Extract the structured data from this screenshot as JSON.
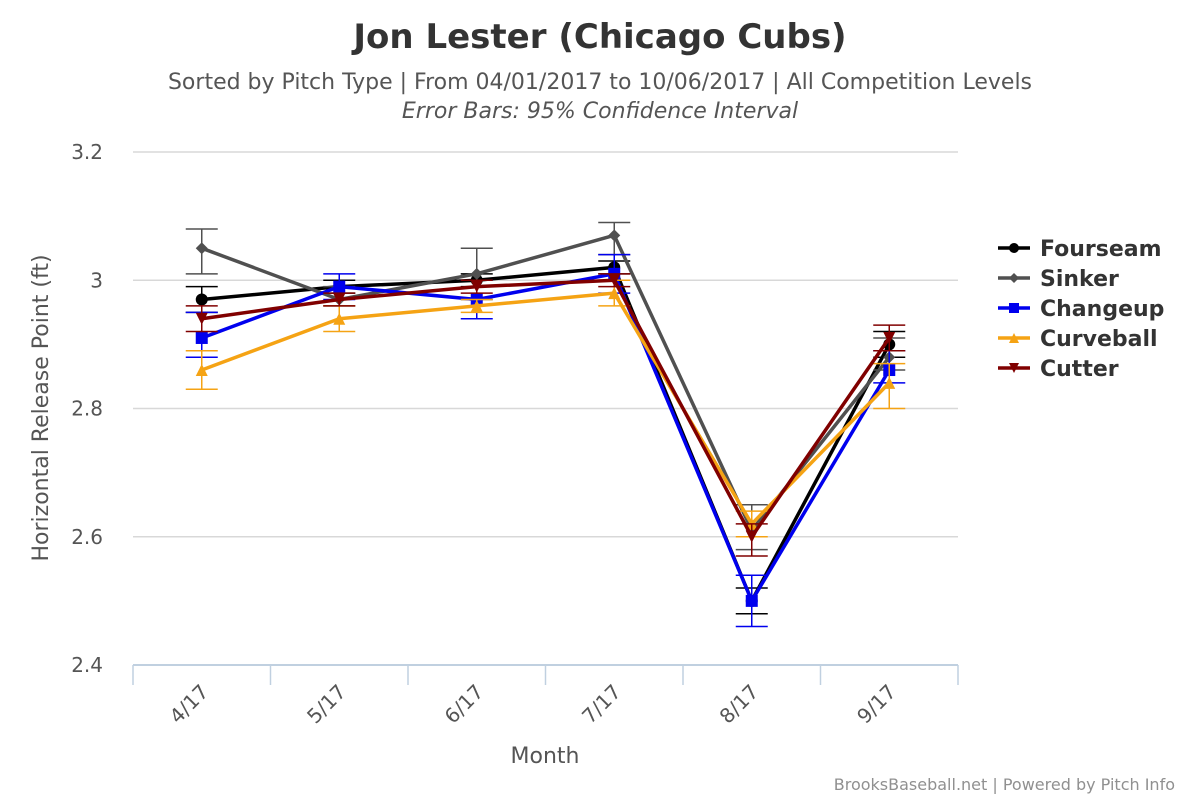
{
  "chart_data": {
    "type": "line",
    "title": "Jon Lester (Chicago Cubs)",
    "subtitle": "Sorted by Pitch Type | From 04/01/2017 to 10/06/2017 | All Competition Levels",
    "subtitle2": "Error Bars: 95% Confidence Interval",
    "xlabel": "Month",
    "ylabel": "Horizontal Release Point (ft)",
    "categories": [
      "4/17",
      "5/17",
      "6/17",
      "7/17",
      "8/17",
      "9/17"
    ],
    "ylim": [
      2.4,
      3.2
    ],
    "yticks": [
      2.4,
      2.6,
      2.8,
      3.0,
      3.2
    ],
    "ytick_labels": [
      "2.4",
      "2.6",
      "2.8",
      "3",
      "3.2"
    ],
    "grid": true,
    "legend_position": "right",
    "series": [
      {
        "name": "Fourseam",
        "color": "#000000",
        "marker": "circle",
        "values": [
          2.97,
          2.99,
          3.0,
          3.02,
          2.5,
          2.9
        ],
        "lower": [
          2.95,
          2.98,
          2.99,
          3.01,
          2.48,
          2.88
        ],
        "upper": [
          2.99,
          3.0,
          3.01,
          3.03,
          2.52,
          2.92
        ]
      },
      {
        "name": "Sinker",
        "color": "#505050",
        "marker": "diamond",
        "values": [
          3.05,
          2.97,
          3.01,
          3.07,
          2.61,
          2.88
        ],
        "lower": [
          3.01,
          2.96,
          2.97,
          3.04,
          2.58,
          2.86
        ],
        "upper": [
          3.08,
          2.99,
          3.05,
          3.09,
          2.65,
          2.91
        ]
      },
      {
        "name": "Changeup",
        "color": "#0000ee",
        "marker": "square",
        "values": [
          2.91,
          2.99,
          2.97,
          3.01,
          2.5,
          2.86
        ],
        "lower": [
          2.88,
          2.97,
          2.94,
          2.98,
          2.46,
          2.84
        ],
        "upper": [
          2.95,
          3.01,
          3.0,
          3.04,
          2.54,
          2.89
        ]
      },
      {
        "name": "Curveball",
        "color": "#f5a314",
        "marker": "triangle",
        "values": [
          2.86,
          2.94,
          2.96,
          2.98,
          2.62,
          2.84
        ],
        "lower": [
          2.83,
          2.92,
          2.95,
          2.96,
          2.6,
          2.8
        ],
        "upper": [
          2.89,
          2.96,
          2.97,
          3.0,
          2.64,
          2.87
        ]
      },
      {
        "name": "Cutter",
        "color": "#800000",
        "marker": "triangle-down",
        "values": [
          2.94,
          2.97,
          2.99,
          3.0,
          2.6,
          2.91
        ],
        "lower": [
          2.92,
          2.96,
          2.98,
          2.99,
          2.57,
          2.89
        ],
        "upper": [
          2.96,
          2.98,
          3.0,
          3.01,
          2.62,
          2.93
        ]
      }
    ]
  },
  "credits": "BrooksBaseball.net | Powered by Pitch Info"
}
